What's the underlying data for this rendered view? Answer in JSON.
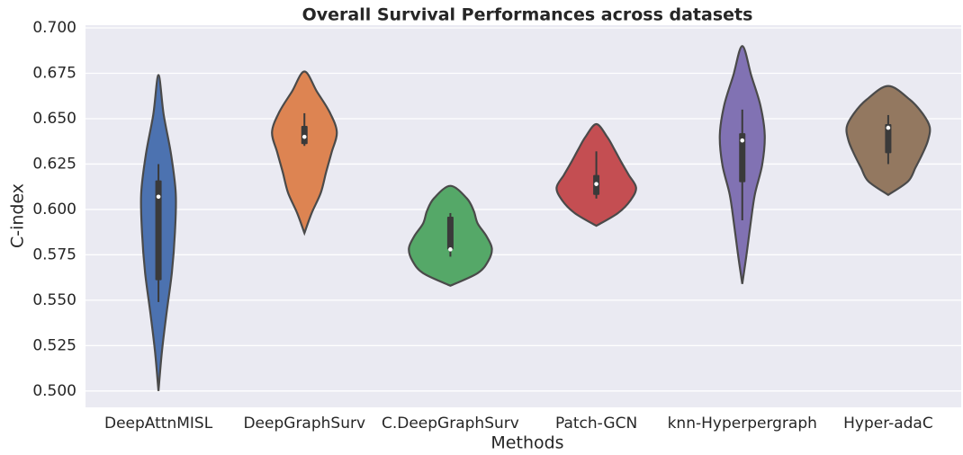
{
  "chart_data": {
    "type": "violin",
    "title": "Overall Survival Performances across datasets",
    "x_label": "Methods",
    "y_label": "C-index",
    "categories": [
      "DeepAttnMISL",
      "DeepGraphSurv",
      "C.DeepGraphSurv",
      "Patch-GCN",
      "knn-Hyperpergraph",
      "Hyper-adaC"
    ],
    "colors": [
      "#4c72b0",
      "#dd8452",
      "#55a868",
      "#c44e52",
      "#8172b3",
      "#937860"
    ],
    "violins": [
      {
        "min": 0.5,
        "max": 0.674,
        "whisker_low": 0.549,
        "q1": 0.561,
        "median": 0.607,
        "q3": 0.616,
        "whisker_high": 0.625,
        "density": [
          0,
          0.08,
          0.19,
          0.31,
          0.38,
          0.4,
          0.29,
          0.12,
          0
        ]
      },
      {
        "min": 0.587,
        "max": 0.676,
        "whisker_low": 0.635,
        "q1": 0.636,
        "median": 0.64,
        "q3": 0.646,
        "whisker_high": 0.653,
        "density": [
          0,
          0.17,
          0.38,
          0.5,
          0.63,
          0.75,
          0.58,
          0.29,
          0
        ]
      },
      {
        "min": 0.558,
        "max": 0.613,
        "whisker_low": 0.574,
        "q1": 0.578,
        "median": 0.578,
        "q3": 0.596,
        "whisker_high": 0.598,
        "density": [
          0,
          0.63,
          0.88,
          0.96,
          0.83,
          0.63,
          0.54,
          0.38,
          0
        ]
      },
      {
        "min": 0.591,
        "max": 0.647,
        "whisker_low": 0.606,
        "q1": 0.608,
        "median": 0.614,
        "q3": 0.619,
        "whisker_high": 0.632,
        "density": [
          0,
          0.5,
          0.79,
          0.92,
          0.75,
          0.58,
          0.42,
          0.25,
          0
        ]
      },
      {
        "min": 0.559,
        "max": 0.69,
        "whisker_low": 0.594,
        "q1": 0.615,
        "median": 0.638,
        "q3": 0.642,
        "whisker_high": 0.655,
        "density": [
          0,
          0.1,
          0.19,
          0.29,
          0.46,
          0.52,
          0.42,
          0.21,
          0
        ]
      },
      {
        "min": 0.608,
        "max": 0.668,
        "whisker_low": 0.625,
        "q1": 0.631,
        "median": 0.645,
        "q3": 0.647,
        "whisker_high": 0.652,
        "density": [
          0,
          0.46,
          0.63,
          0.79,
          0.92,
          0.96,
          0.79,
          0.5,
          0
        ]
      }
    ],
    "ylim": [
      0.491,
      0.7015
    ],
    "yticks": [
      {
        "value": 0.5,
        "label": "0.500"
      },
      0.525,
      {
        "value": 0.55,
        "label": "0.550"
      },
      0.575,
      {
        "value": 0.6,
        "label": "0.600"
      },
      0.625,
      {
        "value": 0.65,
        "label": "0.650"
      },
      0.675,
      {
        "value": 0.7,
        "label": "0.700"
      }
    ],
    "grid": true
  }
}
